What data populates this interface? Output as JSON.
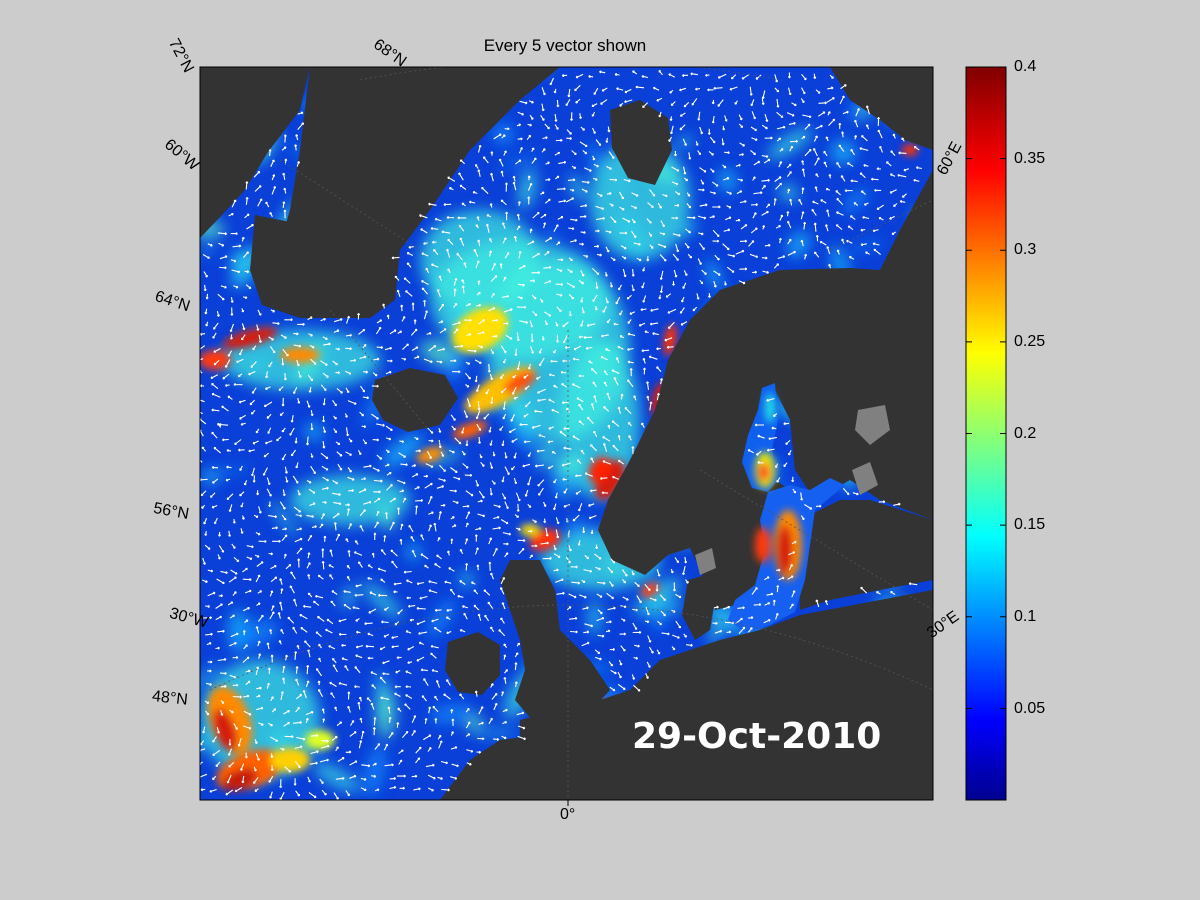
{
  "title": "Every 5 vector shown",
  "date": "29-Oct-2010",
  "colorbar": {
    "colormap": "jet",
    "min": 0,
    "max": 0.4,
    "tick_labels": [
      "0.4",
      "0.35",
      "0.3",
      "0.25",
      "0.2",
      "0.15",
      "0.1",
      "0.05"
    ]
  },
  "grid_labels": {
    "lat_72": "72°N",
    "lat_68": "68°N",
    "lat_64": "64°N",
    "lat_56": "56°N",
    "lat_48": "48°N",
    "lon_60w": "60°W",
    "lon_30w": "30°W",
    "lon_0": "0°",
    "lon_30e": "30°E",
    "lon_60e": "60°E"
  },
  "colors": {
    "figure_bg": "#cccccc",
    "land": "#333333",
    "lake": "#808080",
    "vectors": "#ffffff"
  }
}
